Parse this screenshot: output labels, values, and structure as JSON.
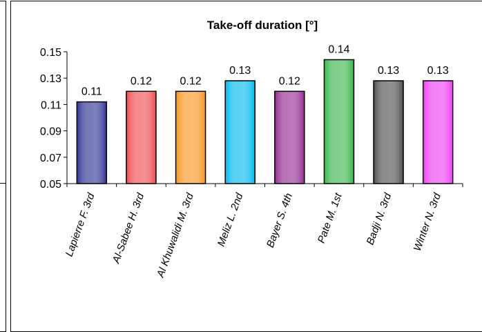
{
  "chart_data": {
    "type": "bar",
    "title": "Take-off duration [°]",
    "xlabel": "",
    "ylabel": "",
    "categories": [
      "Lapierre F. 3rd",
      "Al-Sabee H. 3rd",
      "Al Khuwalidi M. 3rd",
      "Meliz L. 2nd",
      "Bayer S. 4th",
      "Pate M. 1st",
      "Badji N. 3rd",
      "Winter N. 3rd"
    ],
    "values": [
      0.112,
      0.12,
      0.12,
      0.128,
      0.12,
      0.144,
      0.128,
      0.128
    ],
    "data_labels": [
      "0.11",
      "0.12",
      "0.12",
      "0.13",
      "0.12",
      "0.14",
      "0.13",
      "0.13"
    ],
    "bar_colors": [
      "#2e3192",
      "#f04a4e",
      "#f7941d",
      "#00b9ec",
      "#92278f",
      "#39b54a",
      "#4d4d4d",
      "#ee3cf2"
    ],
    "ylim": [
      0.05,
      0.15
    ],
    "yticks": [
      0.05,
      0.07,
      0.09,
      0.11,
      0.13,
      0.15
    ],
    "ytick_labels": [
      "0.05",
      "0.07",
      "0.09",
      "0.11",
      "0.13",
      "0.15"
    ],
    "grid": false,
    "legend": "none"
  }
}
